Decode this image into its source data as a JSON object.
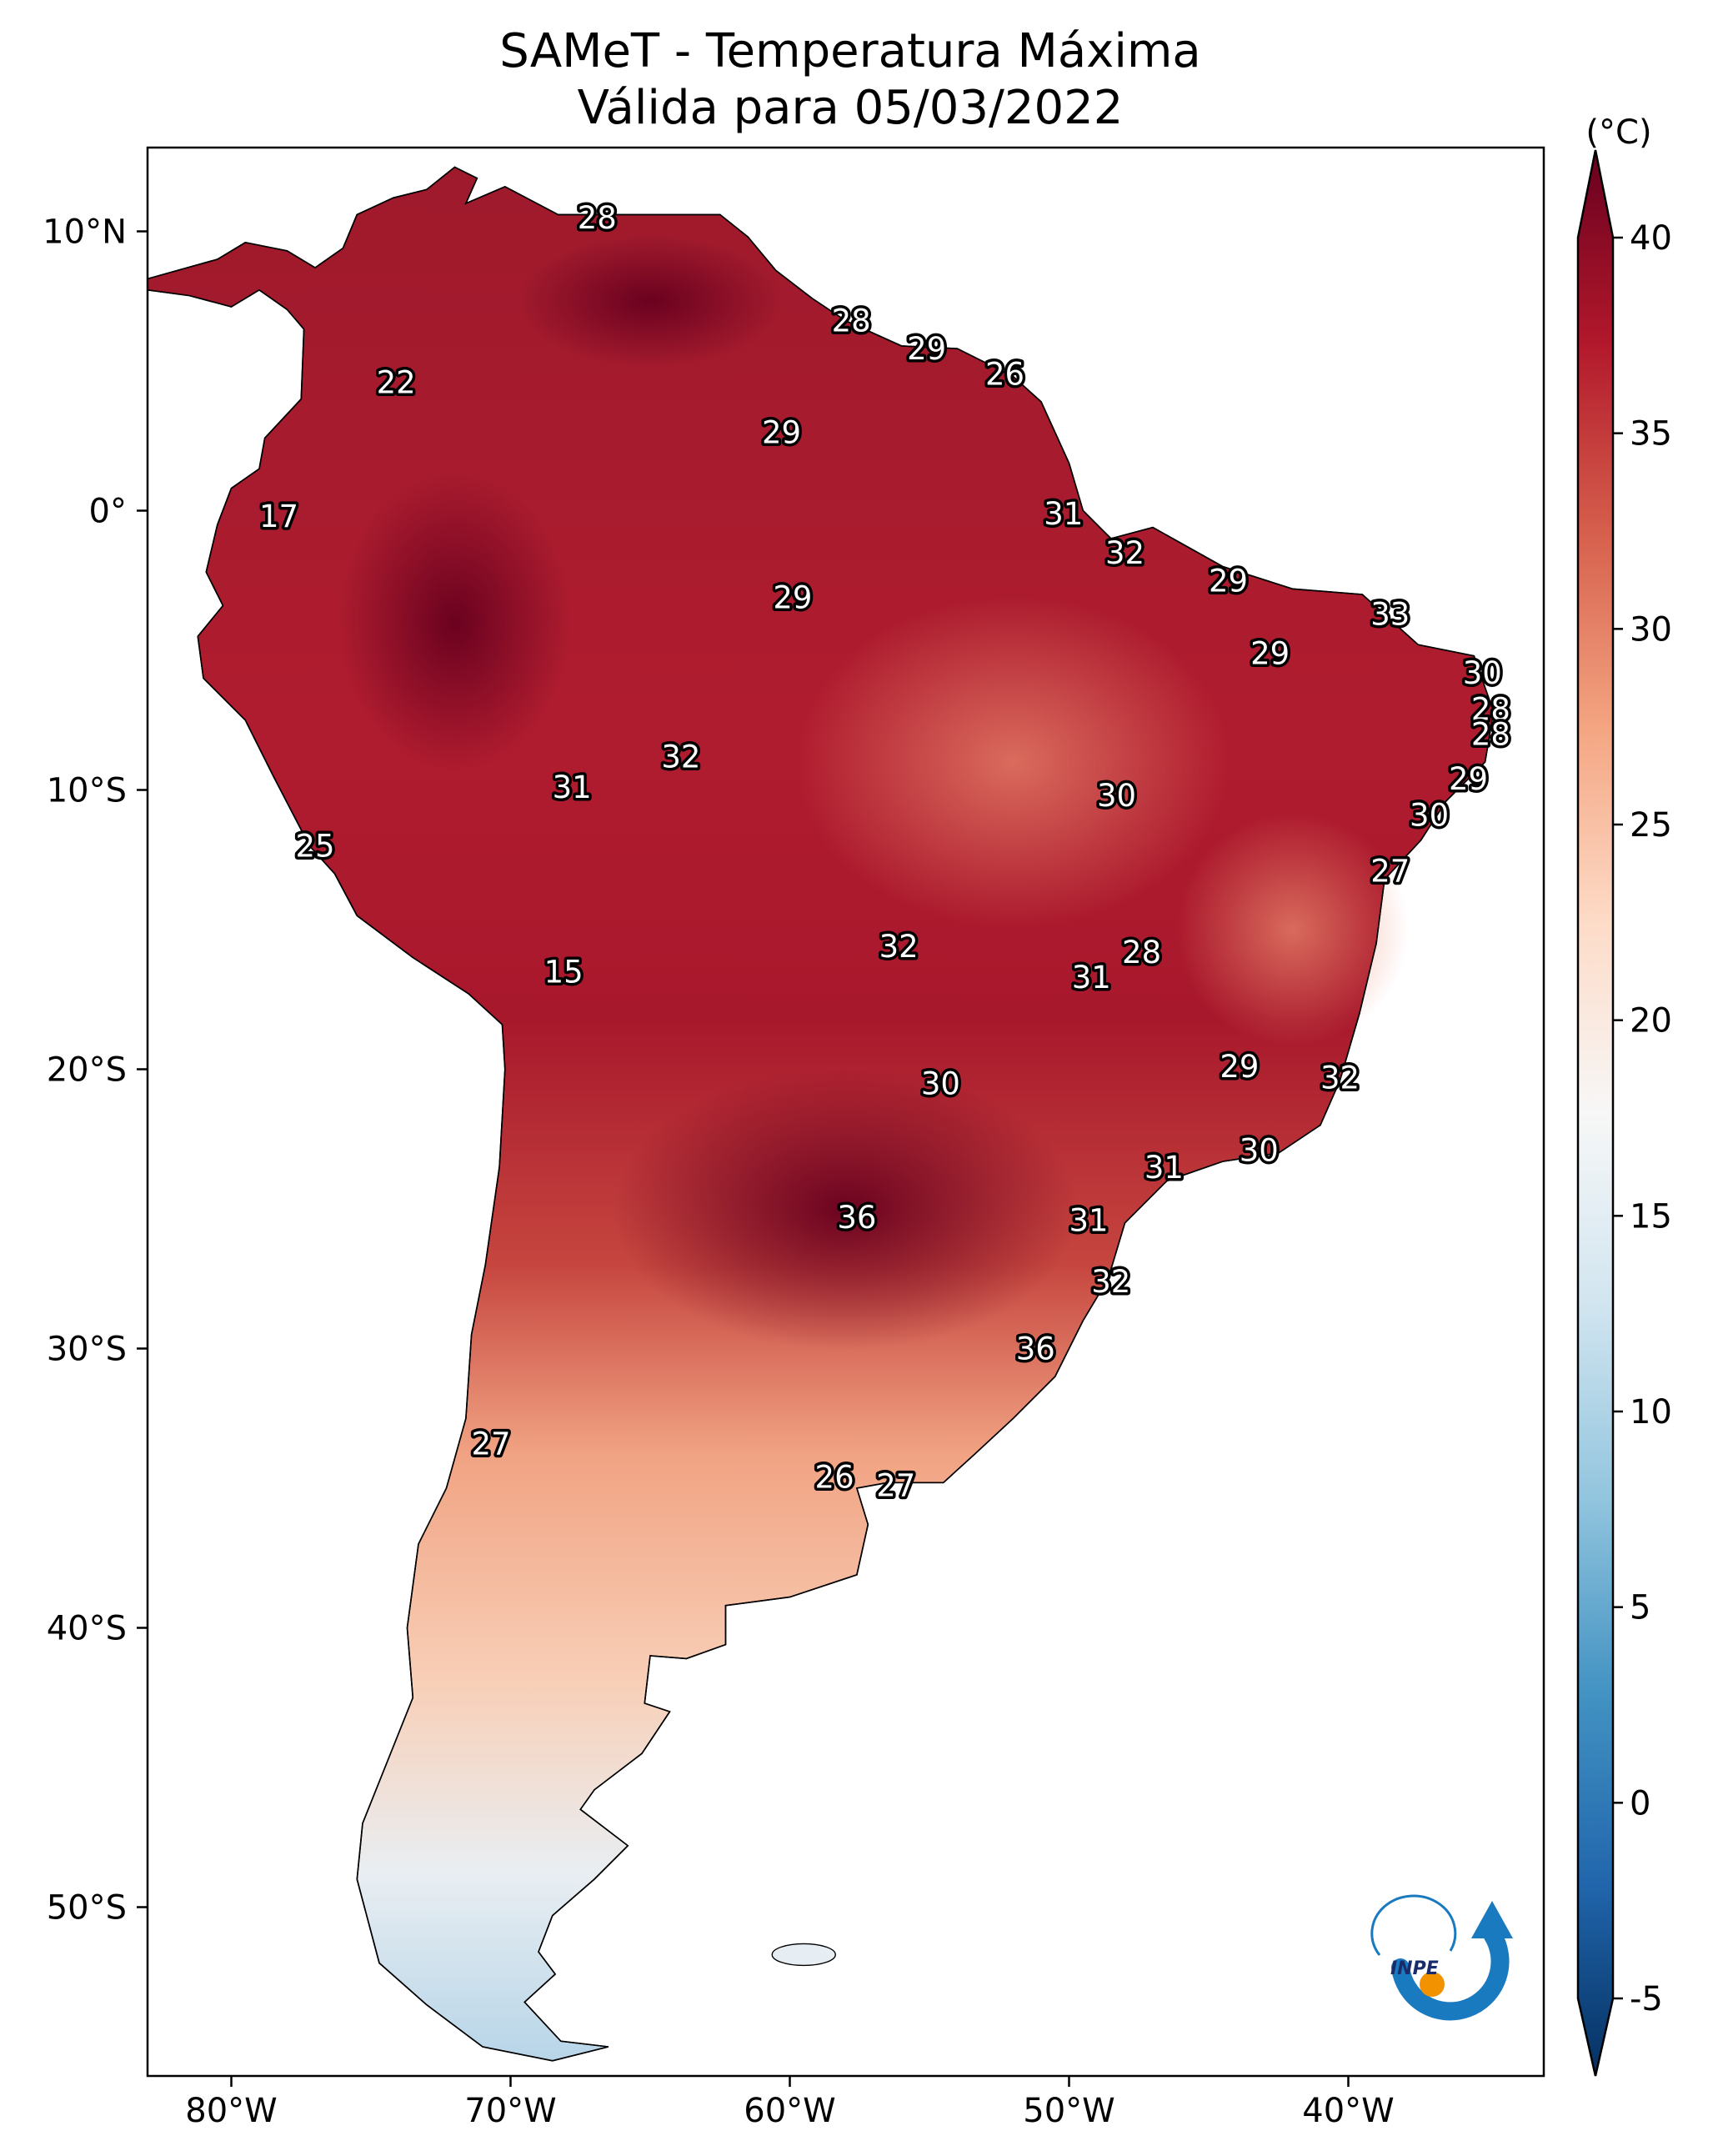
{
  "title": {
    "line1": "SAMeT - Temperatura Máxima",
    "line2": "Válida para 05/03/2022"
  },
  "axes": {
    "lon_ticks": [
      {
        "lon": -80,
        "label": "80°W"
      },
      {
        "lon": -70,
        "label": "70°W"
      },
      {
        "lon": -60,
        "label": "60°W"
      },
      {
        "lon": -50,
        "label": "50°W"
      },
      {
        "lon": -40,
        "label": "40°W"
      }
    ],
    "lat_ticks": [
      {
        "lat": 10,
        "label": "10°N"
      },
      {
        "lat": 0,
        "label": "0°"
      },
      {
        "lat": -10,
        "label": "10°S"
      },
      {
        "lat": -20,
        "label": "20°S"
      },
      {
        "lat": -30,
        "label": "30°S"
      },
      {
        "lat": -40,
        "label": "40°S"
      },
      {
        "lat": -50,
        "label": "50°S"
      }
    ],
    "lon_range": [
      -83,
      -33
    ],
    "lat_range": [
      -56,
      13
    ]
  },
  "colorbar": {
    "unit_label": "(°C)",
    "range": [
      -5,
      40
    ],
    "extend": "both",
    "ticks": [
      {
        "value": 40,
        "label": "40"
      },
      {
        "value": 35,
        "label": "35"
      },
      {
        "value": 30,
        "label": "30"
      },
      {
        "value": 25,
        "label": "25"
      },
      {
        "value": 20,
        "label": "20"
      },
      {
        "value": 15,
        "label": "15"
      },
      {
        "value": 10,
        "label": "10"
      },
      {
        "value": 5,
        "label": "5"
      },
      {
        "value": 0,
        "label": "0"
      },
      {
        "value": -5,
        "label": "-5"
      }
    ],
    "colors": [
      "#053061",
      "#2166ac",
      "#4393c3",
      "#92c5de",
      "#d1e5f0",
      "#f7f7f7",
      "#fddbc7",
      "#f4a582",
      "#d6604d",
      "#b2182b",
      "#67001f"
    ]
  },
  "stations": [
    {
      "lon": -66.9,
      "lat": 10.5,
      "label": "28"
    },
    {
      "lon": -57.8,
      "lat": 6.8,
      "label": "28"
    },
    {
      "lon": -55.1,
      "lat": 5.8,
      "label": "29"
    },
    {
      "lon": -52.3,
      "lat": 4.9,
      "label": "26"
    },
    {
      "lon": -74.1,
      "lat": 4.6,
      "label": "22"
    },
    {
      "lon": -60.3,
      "lat": 2.8,
      "label": "29"
    },
    {
      "lon": -78.3,
      "lat": -0.2,
      "label": "17"
    },
    {
      "lon": -50.2,
      "lat": -0.1,
      "label": "31"
    },
    {
      "lon": -48.0,
      "lat": -1.5,
      "label": "32"
    },
    {
      "lon": -44.3,
      "lat": -2.5,
      "label": "29"
    },
    {
      "lon": -59.9,
      "lat": -3.1,
      "label": "29"
    },
    {
      "lon": -38.5,
      "lat": -3.7,
      "label": "33"
    },
    {
      "lon": -42.8,
      "lat": -5.1,
      "label": "29"
    },
    {
      "lon": -35.2,
      "lat": -5.8,
      "label": "30"
    },
    {
      "lon": -34.9,
      "lat": -7.1,
      "label": "28"
    },
    {
      "lon": -34.9,
      "lat": -8.0,
      "label": "28"
    },
    {
      "lon": -63.9,
      "lat": -8.8,
      "label": "32"
    },
    {
      "lon": -35.7,
      "lat": -9.6,
      "label": "29"
    },
    {
      "lon": -67.8,
      "lat": -9.9,
      "label": "31"
    },
    {
      "lon": -48.3,
      "lat": -10.2,
      "label": "30"
    },
    {
      "lon": -37.1,
      "lat": -10.9,
      "label": "30"
    },
    {
      "lon": -77.0,
      "lat": -12.0,
      "label": "25"
    },
    {
      "lon": -38.5,
      "lat": -12.9,
      "label": "27"
    },
    {
      "lon": -56.1,
      "lat": -15.6,
      "label": "32"
    },
    {
      "lon": -47.4,
      "lat": -15.8,
      "label": "28"
    },
    {
      "lon": -49.2,
      "lat": -16.7,
      "label": "31"
    },
    {
      "lon": -68.1,
      "lat": -16.5,
      "label": "15"
    },
    {
      "lon": -43.9,
      "lat": -19.9,
      "label": "29"
    },
    {
      "lon": -40.3,
      "lat": -20.3,
      "label": "32"
    },
    {
      "lon": -54.6,
      "lat": -20.5,
      "label": "30"
    },
    {
      "lon": -43.2,
      "lat": -22.9,
      "label": "30"
    },
    {
      "lon": -46.6,
      "lat": -23.5,
      "label": "31"
    },
    {
      "lon": -57.6,
      "lat": -25.3,
      "label": "36"
    },
    {
      "lon": -49.3,
      "lat": -25.4,
      "label": "31"
    },
    {
      "lon": -48.5,
      "lat": -27.6,
      "label": "32"
    },
    {
      "lon": -51.2,
      "lat": -30.0,
      "label": "36"
    },
    {
      "lon": -70.7,
      "lat": -33.4,
      "label": "27"
    },
    {
      "lon": -58.4,
      "lat": -34.6,
      "label": "26"
    },
    {
      "lon": -56.2,
      "lat": -34.9,
      "label": "27"
    }
  ],
  "logo": {
    "text": "INPE",
    "name": "inpe-logo"
  }
}
